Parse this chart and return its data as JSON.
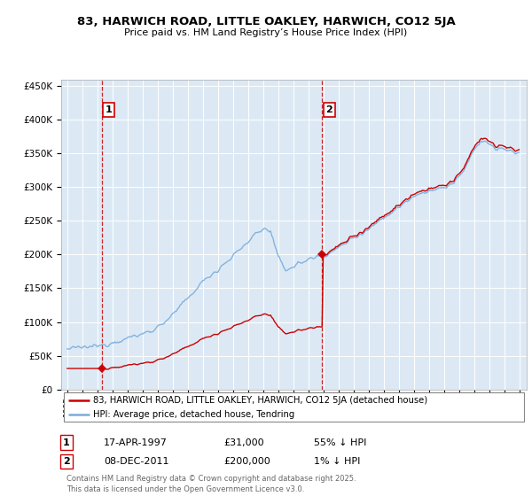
{
  "title_line1": "83, HARWICH ROAD, LITTLE OAKLEY, HARWICH, CO12 5JA",
  "title_line2": "Price paid vs. HM Land Registry’s House Price Index (HPI)",
  "background_color": "#dce9f5",
  "sale1_date": 1997.29,
  "sale1_price": 31000,
  "sale2_date": 2011.92,
  "sale2_price": 200000,
  "legend_line1": "83, HARWICH ROAD, LITTLE OAKLEY, HARWICH, CO12 5JA (detached house)",
  "legend_line2": "HPI: Average price, detached house, Tendring",
  "copyright": "Contains HM Land Registry data © Crown copyright and database right 2025.\nThis data is licensed under the Open Government Licence v3.0.",
  "ylim": [
    0,
    460000
  ],
  "xlim": [
    1994.6,
    2025.5
  ],
  "red_color": "#cc0000",
  "blue_color": "#7aaddb",
  "grid_color": "#ffffff",
  "footnote1_date": "17-APR-1997",
  "footnote1_price": "£31,000",
  "footnote1_hpi": "55% ↓ HPI",
  "footnote2_date": "08-DEC-2011",
  "footnote2_price": "£200,000",
  "footnote2_hpi": "1% ↓ HPI"
}
